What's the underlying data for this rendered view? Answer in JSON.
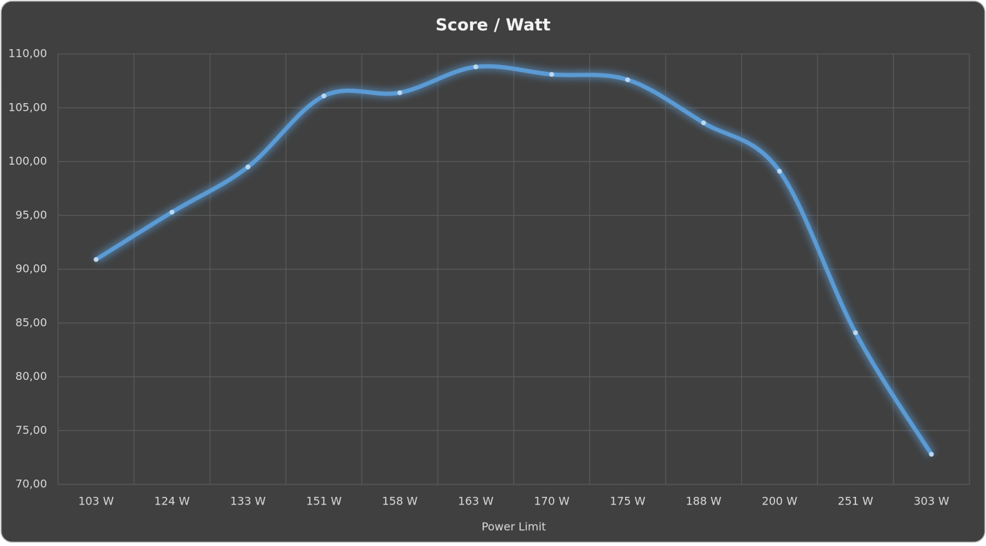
{
  "chart_data": {
    "type": "line",
    "title": "Score / Watt",
    "x_label": "Power Limit",
    "categories": [
      "103 W",
      "124 W",
      "133 W",
      "151 W",
      "158 W",
      "163 W",
      "170 W",
      "175 W",
      "188 W",
      "200 W",
      "251 W",
      "303 W"
    ],
    "values": [
      90.9,
      95.3,
      99.5,
      106.1,
      106.4,
      108.8,
      108.1,
      107.6,
      103.6,
      99.1,
      84.1,
      72.8
    ],
    "color": "#5b9bd5",
    "ylim": [
      70,
      110
    ],
    "yticks": [
      {
        "value": 70,
        "label": "70,00"
      },
      {
        "value": 75,
        "label": "75,00"
      },
      {
        "value": 80,
        "label": "80,00"
      },
      {
        "value": 85,
        "label": "85,00"
      },
      {
        "value": 90,
        "label": "90,00"
      },
      {
        "value": 95,
        "label": "95,00"
      },
      {
        "value": 100,
        "label": "100,00"
      },
      {
        "value": 105,
        "label": "105,00"
      },
      {
        "value": 110,
        "label": "110,00"
      }
    ],
    "grid": true,
    "smooth": true
  }
}
